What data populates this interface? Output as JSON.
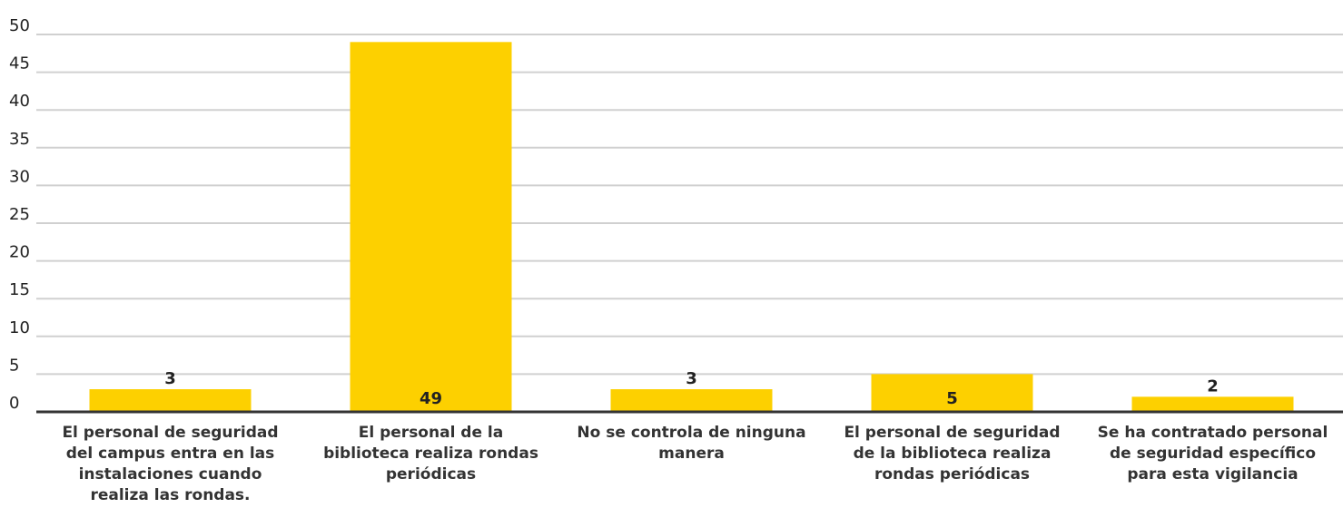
{
  "chart_data": {
    "type": "bar",
    "categories": [
      "El personal de seguridad del campus entra en las instalaciones cuando realiza las rondas.",
      "El personal de la biblioteca realiza rondas periódicas",
      "No se controla de ninguna manera",
      "El personal de seguridad de la biblioteca realiza rondas periódicas",
      "Se ha contratado personal de seguridad específico para esta vigilancia"
    ],
    "values": [
      3,
      49,
      3,
      5,
      2
    ],
    "color": "#fdd000",
    "ylim": [
      0,
      50
    ],
    "yticks": [
      0,
      5,
      10,
      15,
      20,
      25,
      30,
      35,
      40,
      45,
      50
    ],
    "grid": true
  }
}
